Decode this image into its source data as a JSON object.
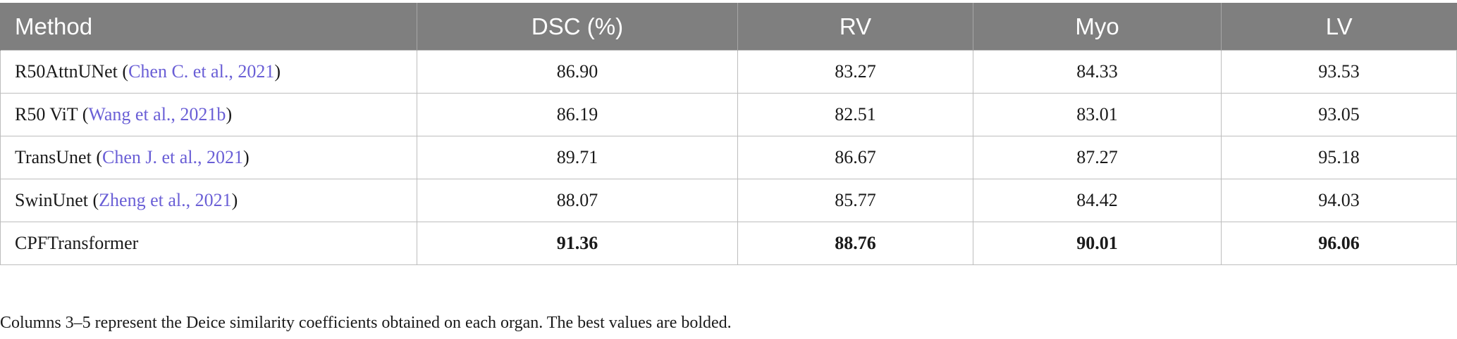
{
  "table": {
    "headers": [
      "Method",
      "DSC (%)",
      "RV",
      "Myo",
      "LV"
    ],
    "rows": [
      {
        "method": "R50AttnUNet",
        "citation": "Chen C. et al., 2021",
        "values": [
          "86.90",
          "83.27",
          "84.33",
          "93.53"
        ]
      },
      {
        "method": "R50 ViT",
        "citation": "Wang et al., 2021b",
        "values": [
          "86.19",
          "82.51",
          "83.01",
          "93.05"
        ]
      },
      {
        "method": "TransUnet",
        "citation": "Chen J. et al., 2021",
        "values": [
          "89.71",
          "86.67",
          "87.27",
          "95.18"
        ]
      },
      {
        "method": "SwinUnet",
        "citation": "Zheng et al., 2021",
        "values": [
          "88.07",
          "85.77",
          "84.42",
          "94.03"
        ]
      },
      {
        "method": "CPFTransformer",
        "citation": "",
        "values": [
          "91.36",
          "88.76",
          "90.01",
          "96.06"
        ],
        "bold": true
      }
    ]
  },
  "footnote": "Columns 3–5 represent the Deice similarity coefficients obtained on each organ. The best values are bolded.",
  "colors": {
    "header_bg": "#7f7f7f",
    "header_text": "#ffffff",
    "citation_link": "#6a5fd6",
    "grid_line": "#bdbdbd"
  }
}
